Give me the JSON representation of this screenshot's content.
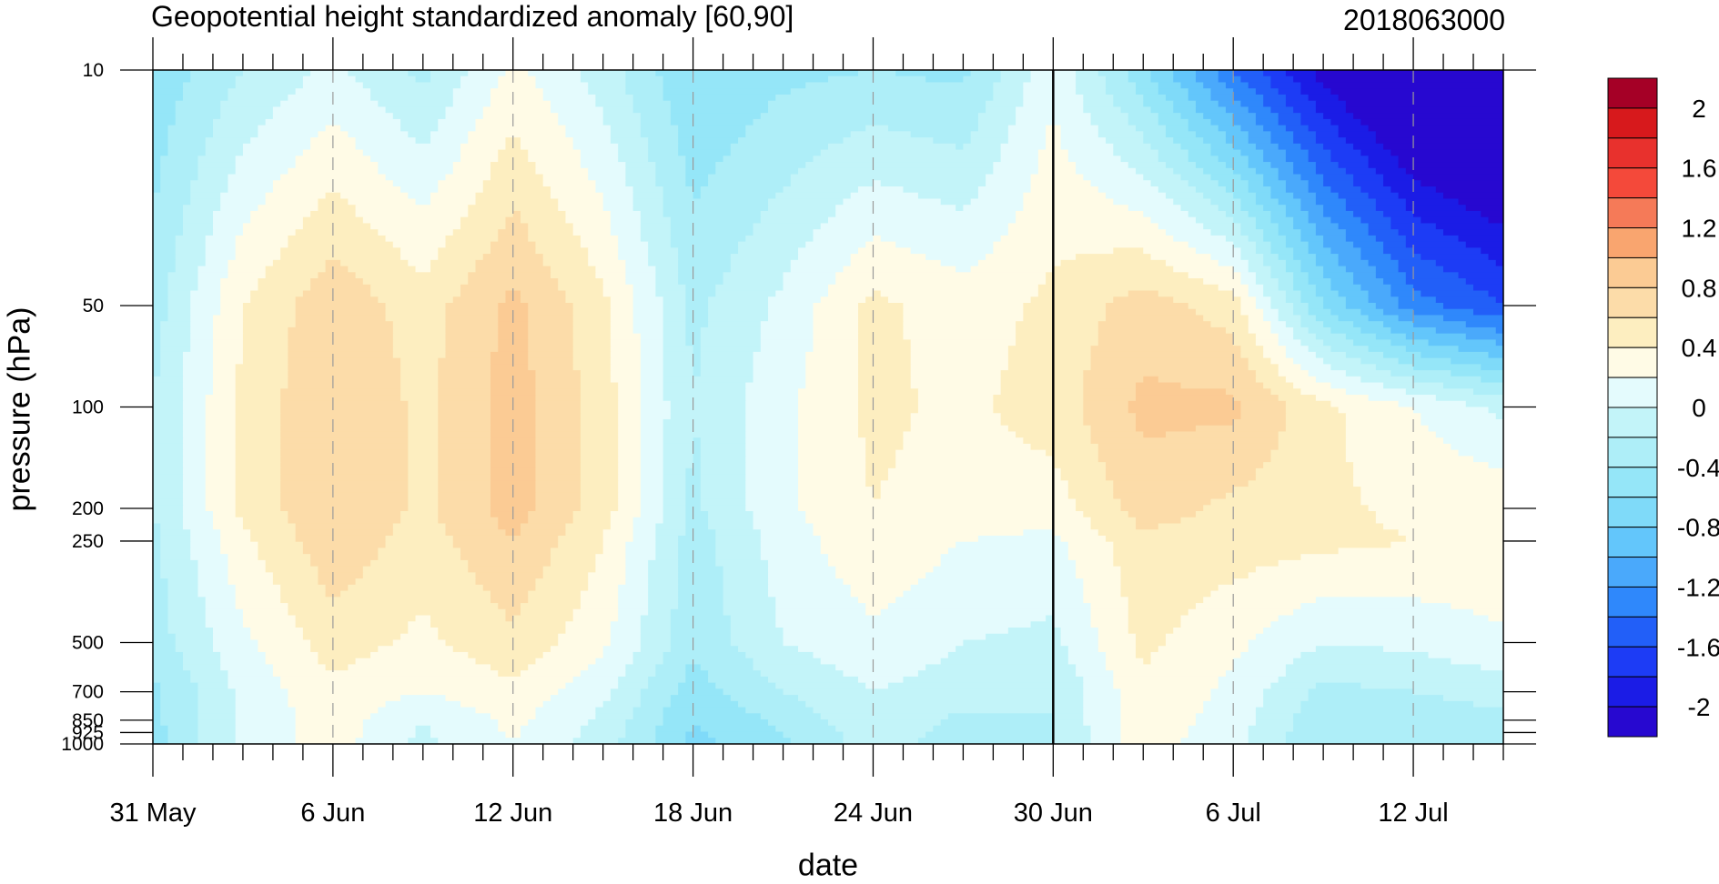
{
  "chart_data": {
    "type": "heatmap",
    "title": "Geopotential height standardized anomaly [60,90]",
    "title_right": "2018063000",
    "xlabel": "date",
    "ylabel": "pressure (hPa)",
    "x_tick_labels": [
      "31 May",
      "6 Jun",
      "12 Jun",
      "18 Jun",
      "24 Jun",
      "30 Jun",
      "6 Jul",
      "12 Jul"
    ],
    "x_tick_days": [
      0,
      6,
      12,
      18,
      24,
      30,
      36,
      42
    ],
    "x_range_days": [
      0,
      45
    ],
    "y_tick_labels": [
      "10",
      "50",
      "100",
      "200",
      "250",
      "500",
      "700",
      "850",
      "925",
      "1000"
    ],
    "y_levels": [
      10,
      50,
      100,
      200,
      250,
      500,
      700,
      850,
      925,
      1000
    ],
    "y_scale": "log",
    "y_range": [
      1000,
      10
    ],
    "marker_line_date": "30 Jun",
    "colorbar": {
      "labels": [
        "2",
        "1.6",
        "1.2",
        "0.8",
        "0.4",
        "0",
        "-0.4",
        "-0.8",
        "-1.2",
        "-1.6",
        "-2"
      ],
      "colors": [
        "#a50026",
        "#d7191c",
        "#e8312d",
        "#f4493a",
        "#f57a58",
        "#f9a56f",
        "#fbcb94",
        "#fcdca9",
        "#fdeec0",
        "#fffbe6",
        "#e4fbfd",
        "#c3f4f9",
        "#aeeef8",
        "#95e6f8",
        "#7fdaf9",
        "#63c6fb",
        "#4aa9fb",
        "#2f88fb",
        "#225ff8",
        "#1d3cf5",
        "#1b1ce6",
        "#2708d0"
      ]
    },
    "fields": {
      "days": [
        0,
        3,
        6,
        9,
        12,
        15,
        18,
        21,
        24,
        27,
        30,
        33,
        36,
        39,
        42,
        45
      ],
      "levels": [
        10,
        50,
        100,
        200,
        250,
        500,
        700,
        850,
        1000
      ],
      "z": [
        [
          -0.55,
          -0.2,
          0.05,
          -0.25,
          0.25,
          -0.1,
          -0.6,
          -0.45,
          -0.4,
          -0.45,
          0.15,
          -0.55,
          -1.4,
          -2.1,
          -2.6,
          -2.8
        ],
        [
          -0.3,
          0.4,
          0.75,
          0.5,
          0.85,
          0.45,
          -0.25,
          0.05,
          0.45,
          0.3,
          0.45,
          0.7,
          0.5,
          -0.6,
          -1.3,
          -1.6
        ],
        [
          -0.2,
          0.45,
          0.8,
          0.55,
          0.9,
          0.5,
          -0.2,
          0.15,
          0.45,
          0.35,
          0.5,
          0.85,
          0.85,
          0.45,
          0.2,
          -0.05
        ],
        [
          -0.2,
          0.45,
          0.8,
          0.55,
          0.9,
          0.5,
          -0.25,
          0.15,
          0.4,
          0.3,
          0.3,
          0.7,
          0.55,
          0.45,
          0.35,
          0.35
        ],
        [
          -0.25,
          0.35,
          0.75,
          0.5,
          0.8,
          0.4,
          -0.3,
          0.1,
          0.35,
          0.2,
          0.15,
          0.55,
          0.5,
          0.45,
          0.4,
          0.4
        ],
        [
          -0.3,
          0.15,
          0.5,
          0.35,
          0.55,
          0.25,
          -0.35,
          0.0,
          0.15,
          0.0,
          -0.05,
          0.45,
          0.25,
          0.0,
          0.05,
          0.15
        ],
        [
          -0.45,
          0.05,
          0.35,
          0.2,
          0.35,
          0.05,
          -0.5,
          -0.2,
          0.0,
          -0.1,
          -0.2,
          0.35,
          0.15,
          -0.25,
          -0.2,
          -0.1
        ],
        [
          -0.45,
          0.05,
          0.3,
          0.0,
          0.25,
          -0.05,
          -0.6,
          -0.35,
          -0.05,
          -0.25,
          -0.2,
          0.35,
          0.1,
          -0.35,
          -0.35,
          -0.25
        ],
        [
          -0.5,
          0.05,
          0.3,
          -0.05,
          0.2,
          -0.1,
          -0.65,
          -0.45,
          -0.1,
          -0.3,
          -0.2,
          0.3,
          0.05,
          -0.4,
          -0.4,
          -0.3
        ]
      ]
    }
  }
}
